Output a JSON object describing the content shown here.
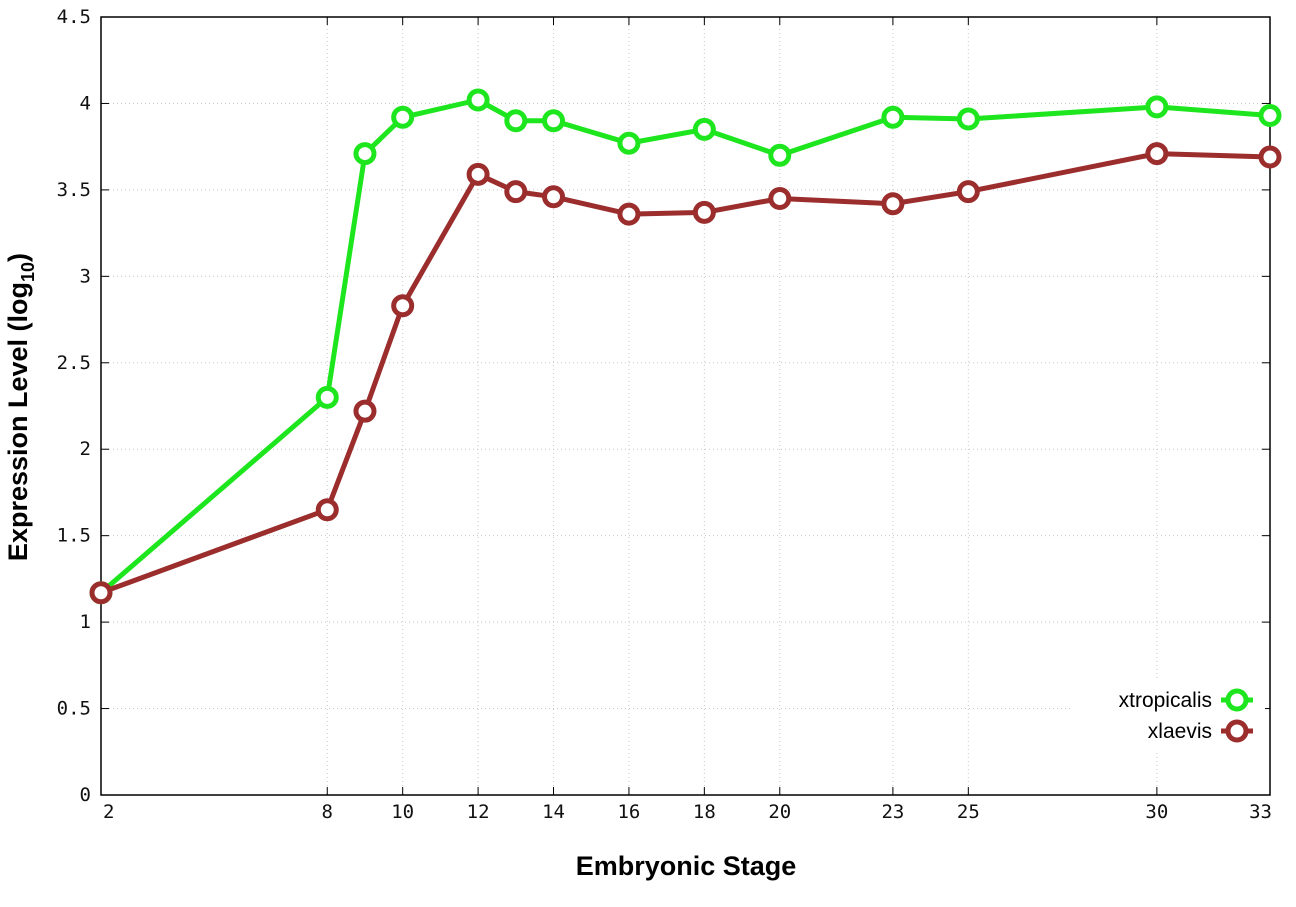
{
  "chart_data": {
    "type": "line",
    "xlabel": "Embryonic Stage",
    "ylabel_main": "Expression Level (log",
    "ylabel_sub": "10",
    "ylabel_close": ")",
    "ylim": [
      0,
      4.5
    ],
    "xlim": [
      2,
      33
    ],
    "y_ticks": [
      "0",
      "0.5",
      "1",
      "1.5",
      "2",
      "2.5",
      "3",
      "3.5",
      "4",
      "4.5"
    ],
    "x_ticks": [
      "2",
      "8",
      "10",
      "12",
      "14",
      "16",
      "18",
      "20",
      "23",
      "25",
      "30",
      "33"
    ],
    "x_tick_positions": [
      2,
      8,
      10,
      12,
      14,
      16,
      18,
      20,
      23,
      25,
      30,
      33
    ],
    "x": [
      2,
      8,
      9,
      10,
      12,
      13,
      14,
      16,
      18,
      20,
      23,
      25,
      30,
      33
    ],
    "grid": true,
    "legend_position": "bottom-right",
    "series": [
      {
        "name": "xtropicalis",
        "color": "#1ee61e",
        "values": [
          1.17,
          2.3,
          3.71,
          3.92,
          4.02,
          3.9,
          3.9,
          3.77,
          3.85,
          3.7,
          3.92,
          3.91,
          3.98,
          3.93
        ]
      },
      {
        "name": "xlaevis",
        "color": "#9b2d2d",
        "values": [
          1.17,
          1.65,
          2.22,
          2.83,
          3.59,
          3.49,
          3.46,
          3.36,
          3.37,
          3.45,
          3.42,
          3.49,
          3.71,
          3.69
        ]
      }
    ]
  }
}
